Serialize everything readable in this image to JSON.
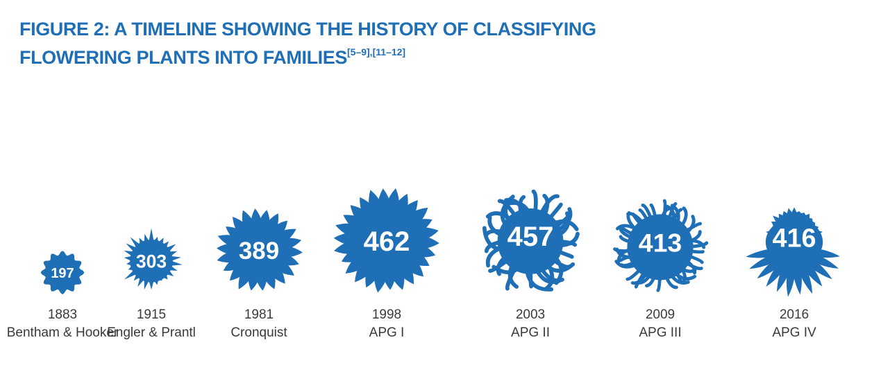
{
  "header": {
    "title_line1": "FIGURE 2: A TIMELINE SHOWING THE HISTORY OF CLASSIFYING",
    "title_line2": "FLOWERING PLANTS INTO FAMILIES",
    "citations": "[5–9],[11–12]"
  },
  "colors": {
    "accent": "#1f6fb7",
    "label_text": "#3a3a3a",
    "value_text": "#ffffff"
  },
  "chart_data": {
    "type": "bar",
    "mark": "flower-icon",
    "title": "FIGURE 2: A TIMELINE SHOWING THE HISTORY OF CLASSIFYING FLOWERING PLANTS INTO FAMILIES",
    "xlabel": "",
    "ylabel": "",
    "categories": [
      "1883",
      "1915",
      "1981",
      "1998",
      "2003",
      "2009",
      "2016"
    ],
    "systems": [
      "Bentham & Hooker",
      "Engler & Prantl",
      "Cronquist",
      "APG I",
      "APG II",
      "APG III",
      "APG IV"
    ],
    "values": [
      197,
      303,
      389,
      462,
      457,
      413,
      416
    ],
    "styles": [
      "rounded",
      "spiky",
      "daisy",
      "daisy",
      "curly",
      "pompom",
      "coneflower"
    ]
  }
}
